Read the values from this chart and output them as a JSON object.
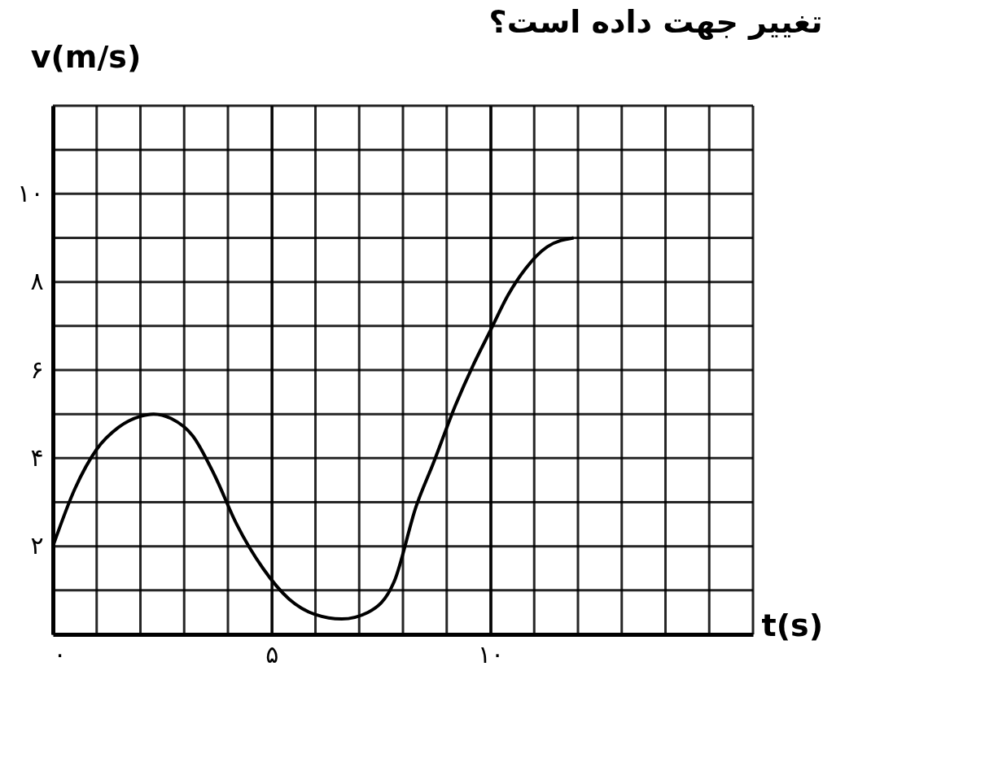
{
  "chart_data": {
    "type": "line",
    "title": "تغییر جهت داده است؟",
    "xlabel": "t(s)",
    "ylabel": "v(m/s)",
    "x": [
      0,
      0.5,
      1,
      1.5,
      2,
      2.3,
      2.7,
      3.2,
      3.7,
      4.2,
      4.8,
      5.4,
      6,
      6.6,
      7.2,
      7.8,
      8.3,
      8.7,
      9.2,
      9.6,
      10,
      10.4,
      10.8,
      11.3,
      11.9
    ],
    "series": [
      {
        "color": "#000000",
        "values": [
          2,
          3.3,
          4.2,
          4.7,
          4.95,
          5,
          4.9,
          4.5,
          3.6,
          2.5,
          1.5,
          0.8,
          0.45,
          0.35,
          0.5,
          1.2,
          2.9,
          3.9,
          5.2,
          6.1,
          6.9,
          7.7,
          8.3,
          8.8,
          9.0
        ]
      }
    ],
    "xlim": [
      0,
      16
    ],
    "ylim": [
      0,
      12
    ],
    "xticks": [
      {
        "value": 0,
        "label": "۰"
      },
      {
        "value": 5,
        "label": "۵"
      },
      {
        "value": 10,
        "label": "۱۰"
      }
    ],
    "yticks": [
      {
        "value": 2,
        "label": "۲"
      },
      {
        "value": 4,
        "label": "۴"
      },
      {
        "value": 6,
        "label": "۶"
      },
      {
        "value": 8,
        "label": "۸"
      },
      {
        "value": 10,
        "label": "۱۰"
      }
    ],
    "grid": true,
    "marker": "none",
    "line_style": "solid"
  }
}
